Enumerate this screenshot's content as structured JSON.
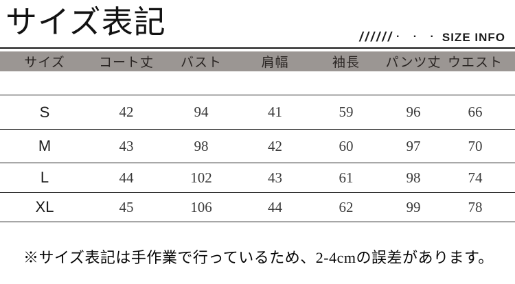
{
  "header": {
    "title": "サイズ表記",
    "decor_slashes": "//////",
    "decor_dots": "· · ·",
    "size_info_label": "SIZE INFO"
  },
  "table": {
    "columns": [
      "サイズ",
      "コート丈",
      "バスト",
      "肩幅",
      "袖長",
      "パンツ丈",
      "ウエスト"
    ],
    "rows": [
      {
        "size": "S",
        "values": [
          42,
          94,
          41,
          59,
          96,
          66
        ]
      },
      {
        "size": "M",
        "values": [
          43,
          98,
          42,
          60,
          97,
          70
        ]
      },
      {
        "size": "L",
        "values": [
          44,
          102,
          43,
          61,
          98,
          74
        ]
      },
      {
        "size": "XL",
        "values": [
          45,
          106,
          44,
          62,
          99,
          78
        ]
      }
    ]
  },
  "note": "※サイズ表記は手作業で行っているため、2-4cmの誤差があります。",
  "colors": {
    "header_band_bg": "#9b9693",
    "line": "#1c1c1c",
    "number_text": "#3a3a3a",
    "background": "#ffffff"
  }
}
